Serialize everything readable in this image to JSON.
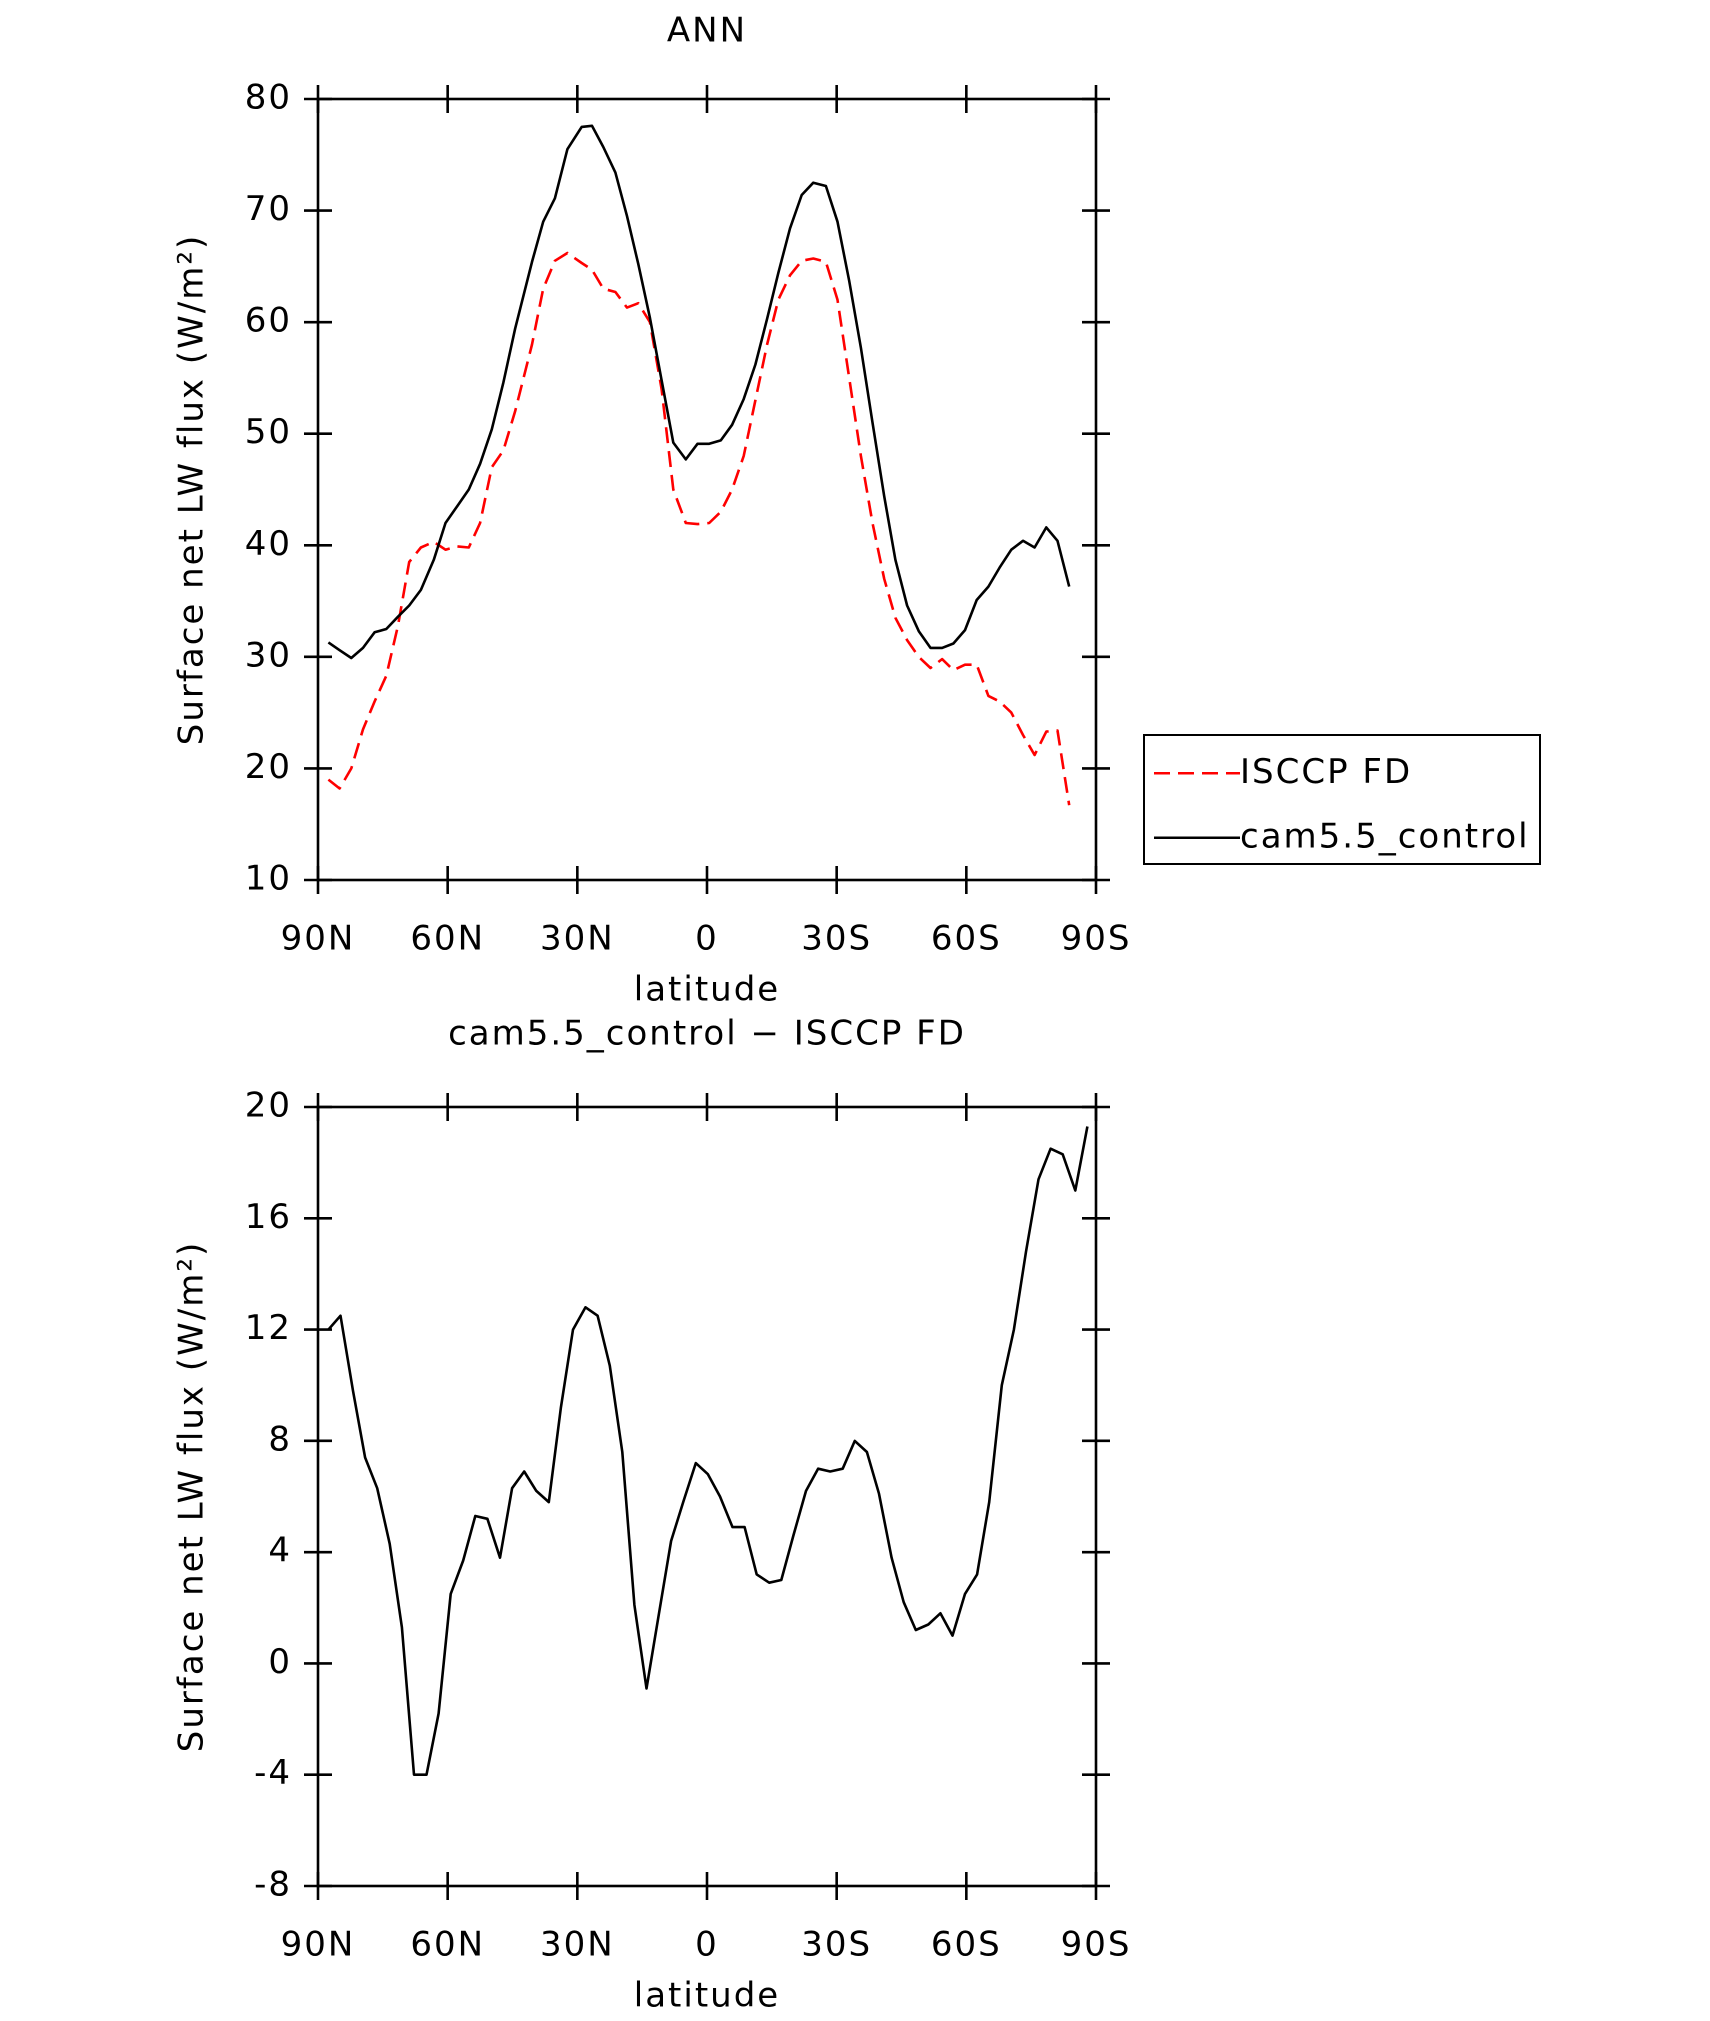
{
  "chart_data": [
    {
      "type": "line",
      "title": "ANN",
      "xlabel": "latitude",
      "ylabel": "Surface net LW flux (W/m²)",
      "xlim": [
        90,
        -90
      ],
      "xticks": [
        {
          "value": 90,
          "label": "90N"
        },
        {
          "value": 60,
          "label": "60N"
        },
        {
          "value": 30,
          "label": "30N"
        },
        0,
        {
          "value": -30,
          "label": "30S"
        },
        {
          "value": -60,
          "label": "60S"
        },
        {
          "value": -90,
          "label": "90S"
        }
      ],
      "ylim": [
        10,
        80
      ],
      "yticks": [
        10,
        20,
        30,
        40,
        50,
        60,
        70,
        80
      ],
      "legend": "right",
      "x": [
        87.6,
        85,
        82.3,
        79.6,
        76.9,
        74.2,
        71.5,
        68.9,
        66.2,
        63.2,
        60.5,
        57.8,
        55.1,
        52.5,
        49.8,
        47.1,
        44.4,
        40.5,
        37.9,
        35.2,
        32.3,
        29.0,
        26.6,
        24.0,
        21.2,
        18.5,
        15.9,
        13.2,
        10.5,
        7.8,
        4.9,
        2.2,
        -0.5,
        -3.2,
        -5.8,
        -8.5,
        -11.2,
        -13.9,
        -16.5,
        -19.2,
        -21.9,
        -24.6,
        -27.5,
        -30.2,
        -32.9,
        -35.6,
        -38.3,
        -41.0,
        -43.6,
        -46.3,
        -49.0,
        -51.7,
        -54.4,
        -57.0,
        -59.7,
        -62.4,
        -65.1,
        -67.7,
        -70.4,
        -73.1,
        -75.8,
        -78.5,
        -81.1,
        -83.8
      ],
      "series": [
        {
          "name": "ISCCP FD",
          "color": "#ff0000",
          "dash": true,
          "values": [
            19.0,
            18.2,
            20.0,
            23.5,
            26.0,
            28.3,
            32.8,
            38.5,
            39.8,
            40.3,
            39.6,
            39.9,
            39.8,
            42.0,
            47.0,
            48.5,
            52.0,
            58.0,
            63.0,
            65.5,
            66.2,
            65.3,
            64.7,
            63.0,
            62.7,
            61.3,
            61.7,
            60.0,
            54.0,
            45.0,
            42.0,
            41.9,
            42.0,
            43.0,
            45.0,
            48.0,
            53.0,
            58.0,
            62.0,
            64.2,
            65.5,
            65.7,
            65.4,
            62.0,
            55.0,
            48.0,
            42.0,
            37.0,
            33.5,
            31.5,
            30.0,
            29.0,
            29.8,
            28.8,
            29.3,
            29.3,
            26.5,
            26.0,
            25.0,
            23.0,
            21.2,
            23.3,
            23.4,
            16.7
          ]
        },
        {
          "name": "cam5.5_control",
          "color": "#000000",
          "dash": false,
          "values": [
            31.3,
            30.6,
            29.9,
            30.8,
            32.2,
            32.5,
            33.6,
            34.6,
            36.0,
            38.7,
            42.0,
            43.5,
            45.0,
            47.3,
            50.4,
            54.6,
            59.4,
            65.4,
            69.0,
            71.1,
            75.5,
            77.5,
            77.6,
            75.7,
            73.4,
            69.5,
            65.2,
            60.4,
            54.8,
            49.2,
            47.7,
            49.1,
            49.1,
            49.4,
            50.8,
            53.1,
            56.2,
            60.3,
            64.4,
            68.4,
            71.4,
            72.5,
            72.2,
            69.0,
            63.7,
            57.7,
            51.0,
            44.4,
            38.7,
            34.6,
            32.3,
            30.8,
            30.8,
            31.2,
            32.4,
            35.1,
            36.3,
            38.0,
            39.6,
            40.4,
            39.8,
            41.6,
            40.4,
            36.3
          ]
        }
      ]
    },
    {
      "type": "line",
      "title": "cam5.5_control − ISCCP FD",
      "xlabel": "latitude",
      "ylabel": "Surface net LW flux (W/m²)",
      "xlim": [
        90,
        -90
      ],
      "xticks": [
        {
          "value": 90,
          "label": "90N"
        },
        {
          "value": 60,
          "label": "60N"
        },
        {
          "value": 30,
          "label": "30N"
        },
        0,
        {
          "value": -30,
          "label": "30S"
        },
        {
          "value": -60,
          "label": "60S"
        },
        {
          "value": -90,
          "label": "90S"
        }
      ],
      "ylim": [
        -8,
        20
      ],
      "yticks": [
        -8,
        -4,
        0,
        4,
        8,
        12,
        16,
        20
      ],
      "x": [
        87.6,
        84.8,
        81.9,
        79.1,
        76.3,
        73.4,
        70.6,
        67.8,
        64.9,
        62.1,
        59.3,
        56.4,
        53.6,
        50.8,
        47.9,
        45.1,
        42.3,
        39.5,
        36.6,
        33.8,
        31.0,
        28.1,
        25.3,
        22.5,
        19.6,
        16.8,
        14.0,
        11.1,
        8.3,
        5.5,
        2.6,
        -0.2,
        -3.0,
        -5.9,
        -8.7,
        -11.5,
        -14.4,
        -17.2,
        -20.0,
        -22.9,
        -25.7,
        -28.5,
        -31.4,
        -34.2,
        -37.0,
        -39.8,
        -42.7,
        -45.5,
        -48.3,
        -51.2,
        -54.0,
        -56.8,
        -59.7,
        -62.5,
        -65.3,
        -68.2,
        -71.0,
        -73.8,
        -76.7,
        -79.5,
        -82.3,
        -85.2,
        -88.0
      ],
      "series": [
        {
          "color": "#000000",
          "dash": false,
          "values": [
            12.0,
            12.5,
            9.8,
            7.4,
            6.3,
            4.3,
            1.3,
            -4.0,
            -4.0,
            -1.8,
            2.5,
            3.7,
            5.3,
            5.2,
            3.8,
            6.3,
            6.9,
            6.2,
            5.8,
            9.2,
            12.0,
            12.8,
            12.5,
            10.7,
            7.6,
            2.1,
            -0.9,
            1.8,
            4.4,
            5.8,
            7.2,
            6.8,
            6.0,
            4.9,
            4.9,
            3.2,
            2.9,
            3.0,
            4.6,
            6.2,
            7.0,
            6.9,
            7.0,
            8.0,
            7.6,
            6.1,
            3.8,
            2.2,
            1.2,
            1.4,
            1.8,
            1.0,
            2.5,
            3.2,
            5.8,
            10.0,
            12.0,
            14.8,
            17.4,
            18.5,
            18.3,
            17.0,
            19.3
          ]
        }
      ]
    }
  ]
}
